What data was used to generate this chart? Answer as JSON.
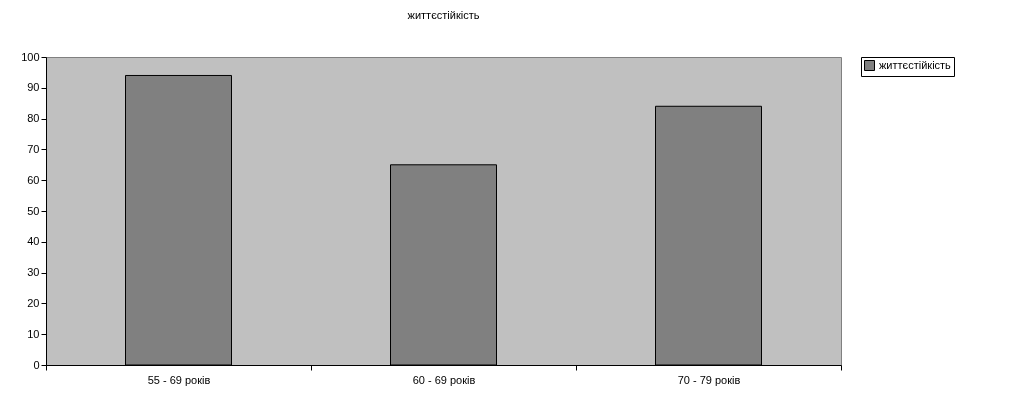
{
  "chart_data": {
    "type": "bar",
    "title": "життєстійкість",
    "categories": [
      "55 - 69 років",
      "60 - 69 років",
      "70 - 79 років"
    ],
    "series": [
      {
        "name": "життєстійкість",
        "color": "#808080",
        "values": [
          94,
          65,
          84
        ]
      }
    ],
    "ylim": [
      0,
      100
    ],
    "yticks": [
      0,
      10,
      20,
      30,
      40,
      50,
      60,
      70,
      80,
      90,
      100
    ],
    "grid": false,
    "legend": "right"
  }
}
